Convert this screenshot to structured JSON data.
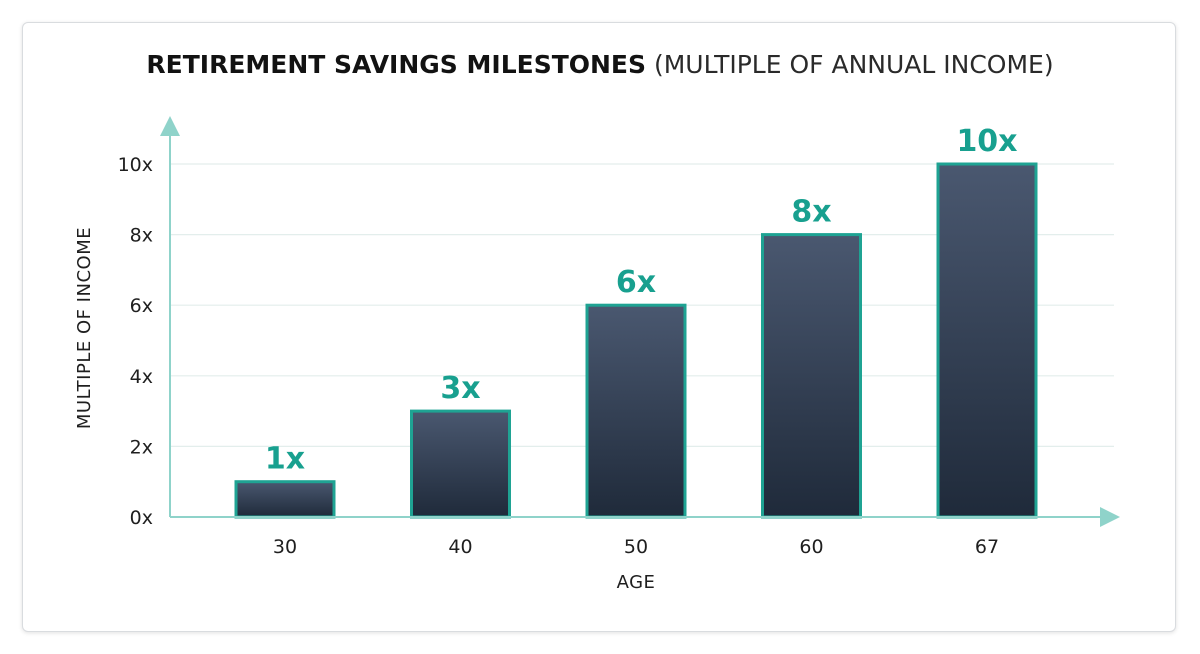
{
  "chart_data": {
    "type": "bar",
    "title_bold": "RETIREMENT SAVINGS MILESTONES",
    "title_rest": "(MULTIPLE OF ANNUAL INCOME)",
    "xlabel": "AGE",
    "ylabel": "MULTIPLE OF INCOME",
    "categories": [
      "30",
      "40",
      "50",
      "60",
      "67"
    ],
    "values": [
      1,
      3,
      6,
      8,
      10
    ],
    "data_labels": [
      "1x",
      "3x",
      "6x",
      "8x",
      "10x"
    ],
    "yticks": [
      {
        "value": 0,
        "label": "0x"
      },
      {
        "value": 2,
        "label": "2x"
      },
      {
        "value": 4,
        "label": "4x"
      },
      {
        "value": 6,
        "label": "6x"
      },
      {
        "value": 8,
        "label": "8x"
      },
      {
        "value": 10,
        "label": "10x"
      }
    ],
    "ylim": [
      0,
      10
    ],
    "grid": true,
    "colors": {
      "bar_top": "#4a5870",
      "bar_bottom": "#1f2a3a",
      "bar_outline": "#1fa393",
      "label": "#18a08f",
      "axis": "#8fd3ca",
      "grid": "#e3eeec"
    }
  }
}
